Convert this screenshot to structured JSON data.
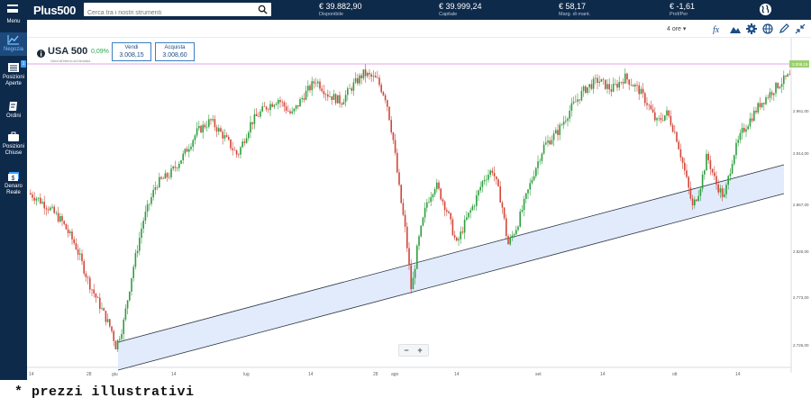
{
  "topbar": {
    "menu_label": "Menu",
    "logo": "Plus500",
    "search_placeholder": "Cerca tra i nostri strumenti",
    "stats": [
      {
        "value": "€ 39.882,90",
        "label": "Disponibile"
      },
      {
        "value": "€ 39.999,24",
        "label": "Capitale"
      },
      {
        "value": "€ 58,17",
        "label": "Marg. di mant."
      },
      {
        "value": "€ -1,61",
        "label": "Prof/Per"
      }
    ]
  },
  "sidebar": {
    "items": [
      {
        "label_1": "Negozia",
        "label_2": "",
        "icon": "chart-line-icon",
        "active": true
      },
      {
        "label_1": "Posizioni",
        "label_2": "Aperte",
        "icon": "open-positions-icon",
        "badge": "1"
      },
      {
        "label_1": "Ordini",
        "label_2": "",
        "icon": "orders-icon"
      },
      {
        "label_1": "Posizioni",
        "label_2": "Chiuse",
        "icon": "briefcase-icon"
      },
      {
        "label_1": "Denaro",
        "label_2": "Reale",
        "icon": "money-icon"
      }
    ]
  },
  "toolbar": {
    "timeframe": "4 ore",
    "icons": [
      "function-icon",
      "mountain-icon",
      "gear-icon",
      "globe-icon",
      "pencil-icon",
      "collapse-icon"
    ]
  },
  "instrument": {
    "name": "USA 500",
    "change": "0,09%",
    "subtitle": "Valori all'interno ad Nenatzia",
    "sell_label": "Vendi",
    "sell_price": "3.008,15",
    "buy_label": "Acquista",
    "buy_price": "3.008,60",
    "current_price_tag": "3.008,15"
  },
  "chart_data": {
    "type": "candlestick",
    "y_ticks": [
      "2.961,00",
      "2.914,00",
      "2.867,00",
      "2.820,00",
      "2.773,00",
      "2.726,00"
    ],
    "x_ticks": [
      "14",
      "28",
      "giu",
      "14",
      "lug",
      "14",
      "28",
      "ago",
      "14",
      "set",
      "14",
      "ott",
      "14"
    ],
    "current_price": 3008.15,
    "ylim": [
      2700,
      3025
    ],
    "colors": {
      "up": "#2e9e3e",
      "down": "#d1473a",
      "band_fill": "#dce8fb",
      "band_line": "#2a3440",
      "price_line": "#e07fe0"
    }
  },
  "zoom": {
    "minus": "−",
    "plus": "+"
  },
  "footnote": "* prezzi illustrativi"
}
